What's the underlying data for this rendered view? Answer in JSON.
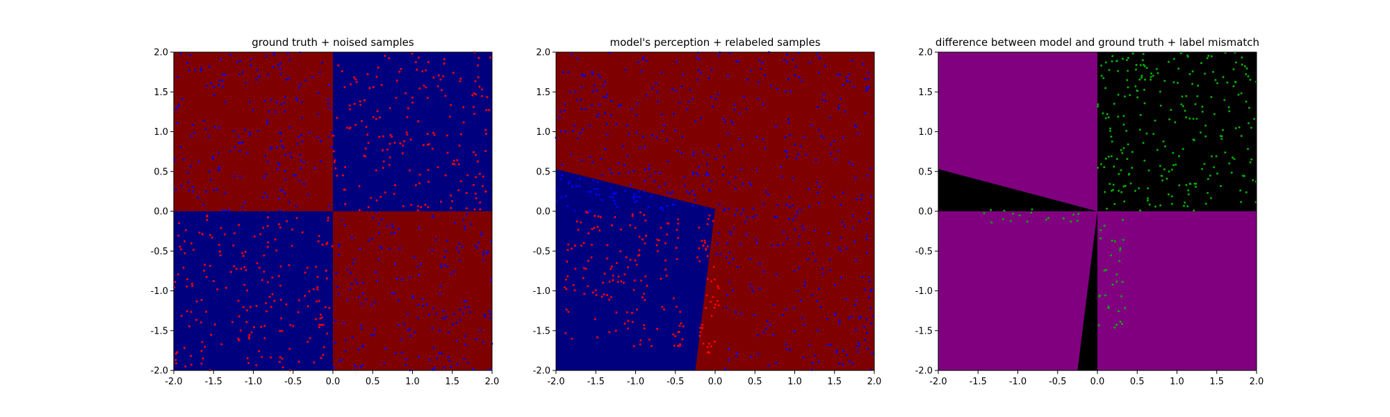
{
  "chart_data": [
    {
      "type": "heatmap",
      "title": "ground truth + noised samples",
      "xlim": [
        -2.0,
        2.0
      ],
      "ylim": [
        -2.0,
        2.0
      ],
      "xticks": [
        "-2.0",
        "-1.5",
        "-1.0",
        "-0.5",
        "0.0",
        "0.5",
        "1.0",
        "1.5",
        "2.0"
      ],
      "yticks": [
        "-2.0",
        "-1.5",
        "-1.0",
        "-0.5",
        "0.0",
        "0.5",
        "1.0",
        "1.5",
        "2.0"
      ],
      "grid": false,
      "colors": {
        "class_a": "#7f0000",
        "class_b": "#00007f",
        "samples_a": "#ff0000",
        "samples_b": "#0000ff"
      },
      "regions": [
        {
          "class": "class_a",
          "polygon": [
            [
              -2,
              0
            ],
            [
              0,
              0
            ],
            [
              0,
              2
            ],
            [
              -2,
              2
            ]
          ]
        },
        {
          "class": "class_b",
          "polygon": [
            [
              0,
              0
            ],
            [
              2,
              0
            ],
            [
              2,
              2
            ],
            [
              0,
              2
            ]
          ]
        },
        {
          "class": "class_b",
          "polygon": [
            [
              -2,
              -2
            ],
            [
              0,
              -2
            ],
            [
              0,
              0
            ],
            [
              -2,
              0
            ]
          ]
        },
        {
          "class": "class_a",
          "polygon": [
            [
              0,
              -2
            ],
            [
              2,
              -2
            ],
            [
              2,
              0
            ],
            [
              0,
              0
            ]
          ]
        }
      ],
      "scatter_groups": [
        {
          "color": "samples_b",
          "x_range": [
            -2,
            0
          ],
          "y_range": [
            0,
            2
          ],
          "count": 190
        },
        {
          "color": "samples_a",
          "x_range": [
            0,
            2
          ],
          "y_range": [
            0,
            2
          ],
          "count": 190
        },
        {
          "color": "samples_a",
          "x_range": [
            -2,
            0
          ],
          "y_range": [
            -2,
            0
          ],
          "count": 190
        },
        {
          "color": "samples_b",
          "x_range": [
            0,
            2
          ],
          "y_range": [
            -2,
            0
          ],
          "count": 190
        }
      ]
    },
    {
      "type": "heatmap",
      "title": "model's perception + relabeled samples",
      "xlim": [
        -2.0,
        2.0
      ],
      "ylim": [
        -2.0,
        2.0
      ],
      "xticks": [
        "-2.0",
        "-1.5",
        "-1.0",
        "-0.5",
        "0.0",
        "0.5",
        "1.0",
        "1.5",
        "2.0"
      ],
      "yticks": [
        "-2.0",
        "-1.5",
        "-1.0",
        "-0.5",
        "0.0",
        "0.5",
        "1.0",
        "1.5",
        "2.0"
      ],
      "grid": false,
      "colors": {
        "class_a": "#7f0000",
        "class_b": "#00007f",
        "samples_a": "#ff0000",
        "samples_b": "#0000ff"
      },
      "regions": [
        {
          "class": "class_a",
          "polygon": [
            [
              -2,
              -2
            ],
            [
              2,
              -2
            ],
            [
              2,
              2
            ],
            [
              -2,
              2
            ]
          ]
        },
        {
          "class": "class_b",
          "polygon": [
            [
              -2,
              0.53
            ],
            [
              0,
              0.03
            ],
            [
              -0.25,
              -2
            ],
            [
              -2,
              -2
            ]
          ]
        }
      ],
      "scatter_groups": [
        {
          "color": "samples_b",
          "x_range": [
            -2,
            2
          ],
          "y_range": [
            0,
            2
          ],
          "count": 330
        },
        {
          "color": "samples_b",
          "x_range": [
            0,
            2
          ],
          "y_range": [
            -2,
            0
          ],
          "count": 170
        },
        {
          "color": "samples_b",
          "x_range": [
            -2,
            0
          ],
          "y_range": [
            0,
            0.5
          ],
          "count": 45
        },
        {
          "color": "samples_a",
          "x_range": [
            -1.9,
            -0.4
          ],
          "y_range": [
            -1.7,
            0
          ],
          "count": 150
        },
        {
          "color": "samples_a",
          "x_range": [
            -0.25,
            0.05
          ],
          "y_range": [
            -1.8,
            0
          ],
          "count": 45
        }
      ]
    },
    {
      "type": "heatmap",
      "title": "difference between model and ground truth + label mismatch",
      "xlim": [
        -2.0,
        2.0
      ],
      "ylim": [
        -2.0,
        2.0
      ],
      "xticks": [
        "-2.0",
        "-1.5",
        "-1.0",
        "-0.5",
        "0.0",
        "0.5",
        "1.0",
        "1.5",
        "2.0"
      ],
      "yticks": [
        "-2.0",
        "-1.5",
        "-1.0",
        "-0.5",
        "0.0",
        "0.5",
        "1.0",
        "1.5",
        "2.0"
      ],
      "grid": false,
      "colors": {
        "different": "#800080",
        "same": "#000000",
        "mismatch": "#00b000"
      },
      "regions": [
        {
          "class": "different",
          "polygon": [
            [
              -2,
              -2
            ],
            [
              2,
              -2
            ],
            [
              2,
              2
            ],
            [
              -2,
              2
            ]
          ]
        },
        {
          "class": "same",
          "polygon": [
            [
              0,
              0
            ],
            [
              2,
              0
            ],
            [
              2,
              2
            ],
            [
              0,
              2
            ]
          ]
        },
        {
          "class": "same",
          "polygon": [
            [
              -2,
              0.53
            ],
            [
              0,
              0
            ],
            [
              -2,
              0
            ]
          ]
        },
        {
          "class": "same",
          "polygon": [
            [
              -0.25,
              -2
            ],
            [
              0,
              0
            ],
            [
              0,
              -2
            ]
          ]
        }
      ],
      "scatter_groups": [
        {
          "color": "mismatch",
          "x_range": [
            0,
            2
          ],
          "y_range": [
            0,
            2
          ],
          "count": 250
        },
        {
          "color": "mismatch",
          "x_range": [
            -1.5,
            -0.2
          ],
          "y_range": [
            -0.15,
            0.03
          ],
          "count": 18
        },
        {
          "color": "mismatch",
          "x_range": [
            0,
            0.35
          ],
          "y_range": [
            -1.5,
            -0.1
          ],
          "count": 30
        }
      ]
    }
  ]
}
